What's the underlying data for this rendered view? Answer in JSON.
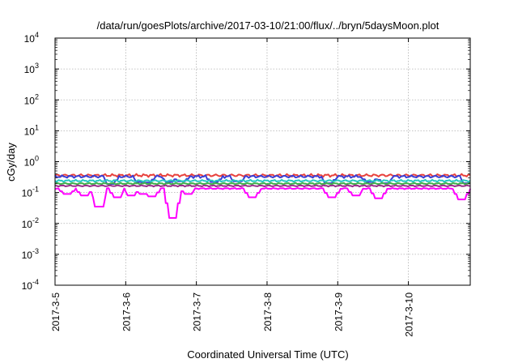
{
  "chart_data": {
    "type": "line",
    "title": "/data/run/goesPlots/archive/2017-03-10/21:00/flux/../bryn/5daysMoon.plot",
    "xlabel": "Coordinated Universal Time (UTC)",
    "ylabel": "cGy/day",
    "y_scale": "log",
    "ylim": [
      0.0001,
      10000
    ],
    "y_ticks": [
      {
        "value": 0.0001,
        "base": "10",
        "exp": "-4"
      },
      {
        "value": 0.001,
        "base": "10",
        "exp": "-3"
      },
      {
        "value": 0.01,
        "base": "10",
        "exp": "-2"
      },
      {
        "value": 0.1,
        "base": "10",
        "exp": "-1"
      },
      {
        "value": 1,
        "base": "10",
        "exp": "0"
      },
      {
        "value": 10,
        "base": "10",
        "exp": "1"
      },
      {
        "value": 100,
        "base": "10",
        "exp": "2"
      },
      {
        "value": 1000,
        "base": "10",
        "exp": "3"
      },
      {
        "value": 10000,
        "base": "10",
        "exp": "4"
      }
    ],
    "xlim": [
      "2017-03-05 00:00",
      "2017-03-10 21:00"
    ],
    "x_ticks": [
      {
        "label": "2017-3-5",
        "date": "2017-03-05 00:00"
      },
      {
        "label": "2017-3-6",
        "date": "2017-03-06 00:00"
      },
      {
        "label": "2017-3-7",
        "date": "2017-03-07 00:00"
      },
      {
        "label": "2017-3-8",
        "date": "2017-03-08 00:00"
      },
      {
        "label": "2017-3-9",
        "date": "2017-03-09 00:00"
      },
      {
        "label": "2017-3-10",
        "date": "2017-03-10 00:00"
      }
    ],
    "grid": true,
    "legend": "none",
    "series": [
      {
        "color": "#e8413c",
        "base": 0.36,
        "dips": [],
        "jitter": 0.07
      },
      {
        "color": "#3a3fd6",
        "base": 0.33,
        "dips": [
          {
            "date": "2017-03-05 19:00",
            "value": 0.19
          },
          {
            "date": "2017-03-06 05:00",
            "value": 0.22
          },
          {
            "date": "2017-03-06 07:00",
            "value": 0.21
          },
          {
            "date": "2017-03-06 15:00",
            "value": 0.22
          },
          {
            "date": "2017-03-06 19:00",
            "value": 0.23
          },
          {
            "date": "2017-03-07 06:00",
            "value": 0.22
          },
          {
            "date": "2017-03-07 14:00",
            "value": 0.23
          },
          {
            "date": "2017-03-08 21:00",
            "value": 0.2
          },
          {
            "date": "2017-03-09 11:00",
            "value": 0.22
          },
          {
            "date": "2017-03-09 16:00",
            "value": 0.2
          },
          {
            "date": "2017-03-10 20:00",
            "value": 0.2
          }
        ],
        "jitter": 0.07
      },
      {
        "color": "#25c7c2",
        "base": 0.24,
        "dips": [],
        "jitter": 0.05
      },
      {
        "color": "#3fb04a",
        "base": 0.195,
        "dips": [],
        "jitter": 0.04
      },
      {
        "color": "#9a2d8c",
        "base": 0.165,
        "dips": [],
        "jitter": 0.035
      },
      {
        "color": "#ff00ff",
        "base": 0.135,
        "dips": [
          {
            "date": "2017-03-05 04:00",
            "value": 0.09
          },
          {
            "date": "2017-03-05 10:00",
            "value": 0.08
          },
          {
            "date": "2017-03-05 15:00",
            "value": 0.035
          },
          {
            "date": "2017-03-05 21:00",
            "value": 0.07
          },
          {
            "date": "2017-03-06 02:00",
            "value": 0.08
          },
          {
            "date": "2017-03-06 06:00",
            "value": 0.09
          },
          {
            "date": "2017-03-06 09:00",
            "value": 0.075
          },
          {
            "date": "2017-03-06 16:00",
            "value": 0.015
          },
          {
            "date": "2017-03-06 21:00",
            "value": 0.09
          },
          {
            "date": "2017-03-07 19:00",
            "value": 0.07
          },
          {
            "date": "2017-03-08 22:00",
            "value": 0.07
          },
          {
            "date": "2017-03-09 06:00",
            "value": 0.08
          },
          {
            "date": "2017-03-09 14:00",
            "value": 0.065
          },
          {
            "date": "2017-03-10 18:00",
            "value": 0.06
          }
        ],
        "jitter": 0.03
      }
    ]
  }
}
